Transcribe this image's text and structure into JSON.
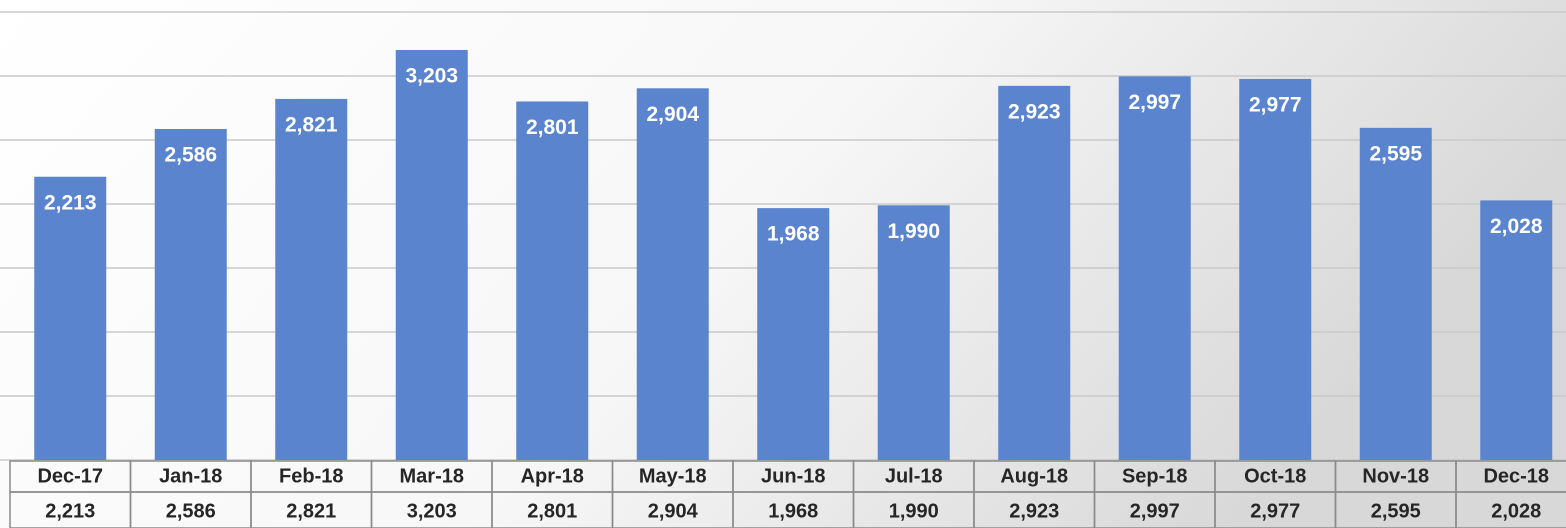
{
  "chart_data": {
    "type": "bar",
    "categories": [
      "Dec-17",
      "Jan-18",
      "Feb-18",
      "Mar-18",
      "Apr-18",
      "May-18",
      "Jun-18",
      "Jul-18",
      "Aug-18",
      "Sep-18",
      "Oct-18",
      "Nov-18",
      "Dec-18"
    ],
    "values": [
      2213,
      2586,
      2821,
      3203,
      2801,
      2904,
      1968,
      1990,
      2923,
      2997,
      2977,
      2595,
      2028
    ],
    "value_labels": [
      "2,213",
      "2,586",
      "2,821",
      "3,203",
      "2,801",
      "2,904",
      "1,968",
      "1,990",
      "2,923",
      "2,997",
      "2,977",
      "2,595",
      "2,028"
    ],
    "color": "#5b84cf",
    "ylim": [
      0,
      3500
    ],
    "yticks": [
      0,
      500,
      1000,
      1500,
      2000,
      2500,
      3000,
      3500
    ],
    "grid": true
  }
}
